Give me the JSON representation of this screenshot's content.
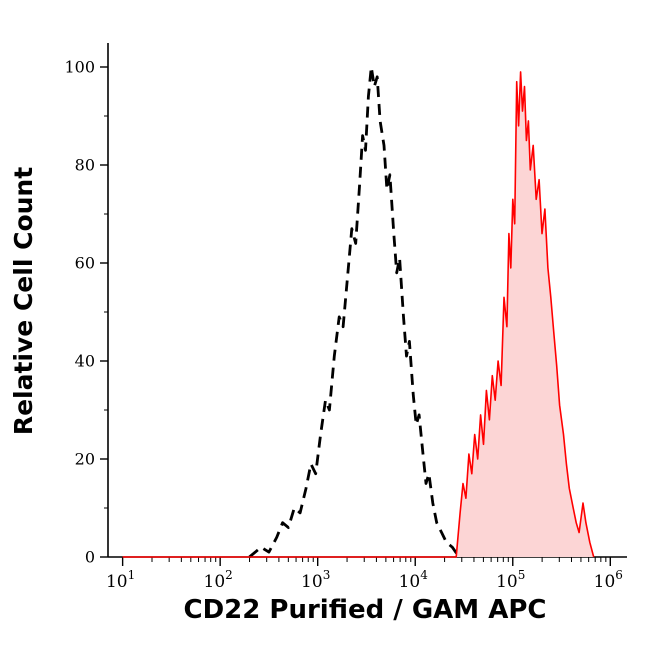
{
  "figure": {
    "background_color": "#ffffff",
    "axis_color": "#000000"
  },
  "chart_data": {
    "type": "line",
    "subtype": "flow-cytometry-overlay-histogram",
    "title": "",
    "xlabel": "CD22 Purified / GAM APC",
    "ylabel": "Relative Cell Count",
    "x_scale": "log10",
    "xlim_log10": [
      0.85,
      6.12
    ],
    "ylim": [
      0,
      100
    ],
    "x_tick_exponents": [
      1,
      2,
      3,
      4,
      5,
      6
    ],
    "x_tick_labels": [
      "10^1",
      "10^2",
      "10^3",
      "10^4",
      "10^5",
      "10^6"
    ],
    "y_ticks": [
      0,
      20,
      40,
      60,
      80,
      100
    ],
    "grid": false,
    "legend": "none",
    "series": [
      {
        "name": "control-dashed",
        "description": "negative control histogram (black dashed)",
        "style": "dashed",
        "color": "#000000",
        "fill": "none",
        "points": [
          [
            2.3,
            0
          ],
          [
            2.42,
            2
          ],
          [
            2.5,
            1
          ],
          [
            2.58,
            4
          ],
          [
            2.64,
            7
          ],
          [
            2.7,
            6
          ],
          [
            2.76,
            10
          ],
          [
            2.82,
            9
          ],
          [
            2.88,
            14
          ],
          [
            2.93,
            19
          ],
          [
            2.98,
            17
          ],
          [
            3.03,
            25
          ],
          [
            3.08,
            32
          ],
          [
            3.12,
            30
          ],
          [
            3.17,
            41
          ],
          [
            3.22,
            49
          ],
          [
            3.26,
            47
          ],
          [
            3.31,
            58
          ],
          [
            3.35,
            67
          ],
          [
            3.39,
            64
          ],
          [
            3.43,
            76
          ],
          [
            3.46,
            86
          ],
          [
            3.49,
            83
          ],
          [
            3.52,
            94
          ],
          [
            3.55,
            100
          ],
          [
            3.58,
            96
          ],
          [
            3.61,
            98
          ],
          [
            3.64,
            89
          ],
          [
            3.68,
            84
          ],
          [
            3.71,
            75
          ],
          [
            3.74,
            78
          ],
          [
            3.78,
            66
          ],
          [
            3.81,
            58
          ],
          [
            3.84,
            61
          ],
          [
            3.88,
            49
          ],
          [
            3.91,
            41
          ],
          [
            3.94,
            44
          ],
          [
            3.98,
            33
          ],
          [
            4.01,
            27
          ],
          [
            4.04,
            29
          ],
          [
            4.08,
            21
          ],
          [
            4.11,
            15
          ],
          [
            4.14,
            17
          ],
          [
            4.18,
            11
          ],
          [
            4.22,
            7
          ],
          [
            4.27,
            5
          ],
          [
            4.32,
            3
          ],
          [
            4.38,
            2
          ],
          [
            4.45,
            0
          ]
        ]
      },
      {
        "name": "cd22-apc-stained",
        "description": "CD22 Purified / GAM APC stained histogram (red, filled)",
        "style": "solid",
        "color": "#ff0000",
        "fill": "#fcd5d5",
        "points": [
          [
            1.0,
            0
          ],
          [
            4.42,
            0
          ],
          [
            4.46,
            9
          ],
          [
            4.49,
            15
          ],
          [
            4.52,
            12
          ],
          [
            4.55,
            21
          ],
          [
            4.58,
            17
          ],
          [
            4.61,
            25
          ],
          [
            4.64,
            20
          ],
          [
            4.67,
            29
          ],
          [
            4.7,
            23
          ],
          [
            4.73,
            34
          ],
          [
            4.76,
            28
          ],
          [
            4.79,
            37
          ],
          [
            4.82,
            32
          ],
          [
            4.85,
            40
          ],
          [
            4.88,
            35
          ],
          [
            4.91,
            53
          ],
          [
            4.94,
            47
          ],
          [
            4.96,
            66
          ],
          [
            4.98,
            59
          ],
          [
            5.0,
            73
          ],
          [
            5.02,
            68
          ],
          [
            5.04,
            97
          ],
          [
            5.06,
            88
          ],
          [
            5.08,
            99
          ],
          [
            5.1,
            91
          ],
          [
            5.12,
            96
          ],
          [
            5.14,
            85
          ],
          [
            5.16,
            89
          ],
          [
            5.18,
            79
          ],
          [
            5.21,
            84
          ],
          [
            5.24,
            73
          ],
          [
            5.27,
            77
          ],
          [
            5.3,
            66
          ],
          [
            5.33,
            71
          ],
          [
            5.36,
            59
          ],
          [
            5.39,
            53
          ],
          [
            5.42,
            46
          ],
          [
            5.45,
            39
          ],
          [
            5.48,
            31
          ],
          [
            5.52,
            25
          ],
          [
            5.55,
            19
          ],
          [
            5.58,
            14
          ],
          [
            5.62,
            10
          ],
          [
            5.65,
            7
          ],
          [
            5.68,
            5
          ],
          [
            5.72,
            11
          ],
          [
            5.75,
            7
          ],
          [
            5.79,
            3
          ],
          [
            5.83,
            0
          ]
        ]
      }
    ]
  }
}
